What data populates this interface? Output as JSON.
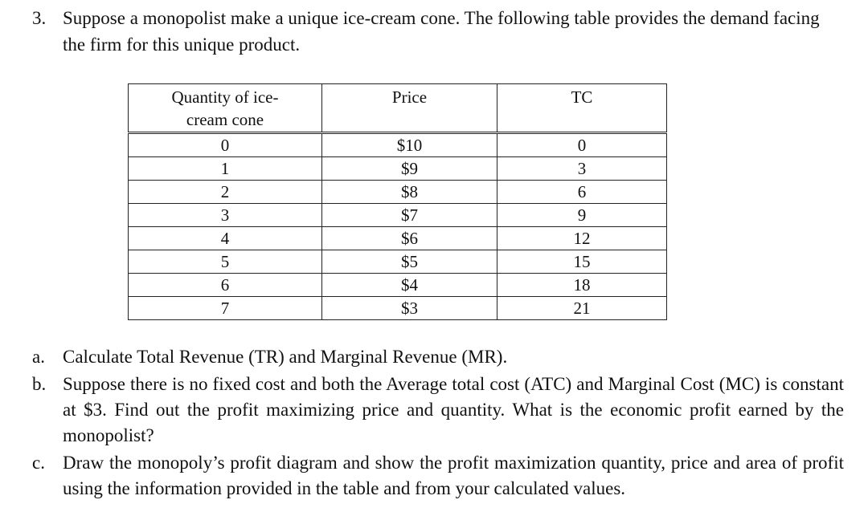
{
  "question": {
    "number": "3.",
    "text": "Suppose a monopolist make a unique ice-cream cone. The following table provides the demand facing the firm for this unique product."
  },
  "table": {
    "headers": [
      "Quantity of ice-cream cone",
      "Price",
      "TC"
    ],
    "rows": [
      [
        "0",
        "$10",
        "0"
      ],
      [
        "1",
        "$9",
        "3"
      ],
      [
        "2",
        "$8",
        "6"
      ],
      [
        "3",
        "$7",
        "9"
      ],
      [
        "4",
        "$6",
        "12"
      ],
      [
        "5",
        "$5",
        "15"
      ],
      [
        "6",
        "$4",
        "18"
      ],
      [
        "7",
        "$3",
        "21"
      ]
    ]
  },
  "parts": [
    {
      "letter": "a.",
      "text": "Calculate Total Revenue (TR) and Marginal Revenue (MR)."
    },
    {
      "letter": "b.",
      "text": "Suppose there is no fixed cost and both the Average total cost (ATC) and Marginal Cost (MC) is constant at $3. Find out the profit maximizing price and quantity. What is the economic profit earned by the monopolist?"
    },
    {
      "letter": "c.",
      "text": "Draw the monopoly’s profit diagram and show the profit maximization quantity, price and area of profit using the information provided in the table and from your calculated values."
    }
  ]
}
